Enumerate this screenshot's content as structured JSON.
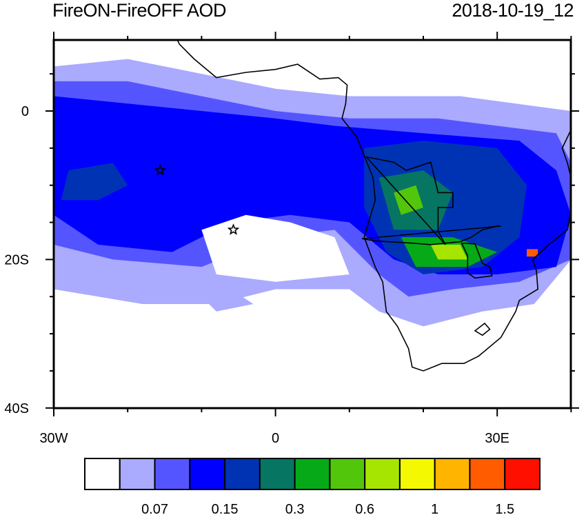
{
  "title_left": "FireON-FireOFF AOD",
  "title_right": "2018-10-19_12",
  "chart_data": {
    "type": "heatmap",
    "title": "FireON-FireOFF AOD",
    "time": "2018-10-19_12",
    "lon_range": [
      -30,
      40
    ],
    "lat_range": [
      -40,
      10
    ],
    "x_ticks": [
      {
        "value": -30,
        "label": "30W"
      },
      {
        "value": 0,
        "label": "0"
      },
      {
        "value": 30,
        "label": "30E"
      }
    ],
    "y_ticks": [
      {
        "value": 0,
        "label": "0"
      },
      {
        "value": -20,
        "label": "20S"
      },
      {
        "value": -40,
        "label": "40S"
      }
    ],
    "markers": [
      {
        "name": "star-ascension",
        "lon": -15.6,
        "lat": -8.0
      },
      {
        "name": "star-st-helena",
        "lon": -5.7,
        "lat": -16.0
      }
    ],
    "colorbar": {
      "colors": [
        "#ffffff",
        "#aaaaff",
        "#5555ff",
        "#0000ff",
        "#0033b3",
        "#067562",
        "#06aa18",
        "#52c60a",
        "#a6e402",
        "#f4f800",
        "#ffb400",
        "#ff5c00",
        "#ff0f00"
      ],
      "labels": [
        "0.07",
        "0.15",
        "0.3",
        "0.6",
        "1",
        "1.5"
      ]
    }
  }
}
